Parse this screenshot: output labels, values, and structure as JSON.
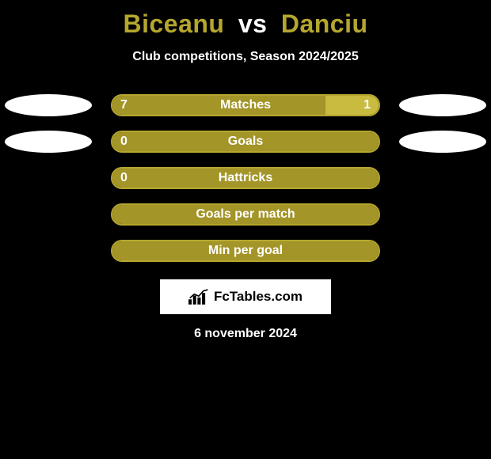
{
  "title": {
    "player1": "Biceanu",
    "vs": "vs",
    "player2": "Danciu",
    "player1_color": "#b5a62e",
    "player2_color": "#b5a62e",
    "vs_color": "#ffffff",
    "fontsize": 32
  },
  "subtitle": {
    "text": "Club competitions, Season 2024/2025",
    "color": "#ffffff",
    "fontsize": 16
  },
  "colors": {
    "background": "#000000",
    "bar_border": "#b5a62e",
    "fill_left": "#a39528",
    "fill_right": "#c9ba40",
    "badge": "#ffffff",
    "text": "#ffffff"
  },
  "bar": {
    "track_width": 340,
    "track_height": 28,
    "border_width": 2,
    "border_radius": 14
  },
  "badges": {
    "width": 110,
    "height": 28,
    "shape": "ellipse"
  },
  "rows": [
    {
      "label": "Matches",
      "left_value": "7",
      "right_value": "1",
      "left_pct": 80,
      "right_pct": 20,
      "show_left_badge": true,
      "show_right_badge": true,
      "show_left_value": true,
      "show_right_value": true
    },
    {
      "label": "Goals",
      "left_value": "0",
      "right_value": "",
      "left_pct": 100,
      "right_pct": 0,
      "show_left_badge": true,
      "show_right_badge": true,
      "show_left_value": true,
      "show_right_value": false
    },
    {
      "label": "Hattricks",
      "left_value": "0",
      "right_value": "",
      "left_pct": 100,
      "right_pct": 0,
      "show_left_badge": false,
      "show_right_badge": false,
      "show_left_value": true,
      "show_right_value": false
    },
    {
      "label": "Goals per match",
      "left_value": "",
      "right_value": "",
      "left_pct": 100,
      "right_pct": 0,
      "show_left_badge": false,
      "show_right_badge": false,
      "show_left_value": false,
      "show_right_value": false
    },
    {
      "label": "Min per goal",
      "left_value": "",
      "right_value": "",
      "left_pct": 100,
      "right_pct": 0,
      "show_left_badge": false,
      "show_right_badge": false,
      "show_left_value": false,
      "show_right_value": false
    }
  ],
  "brand": {
    "text": "FcTables.com",
    "box_bg": "#ffffff",
    "text_color": "#000000",
    "fontsize": 17
  },
  "date": {
    "text": "6 november 2024",
    "color": "#ffffff",
    "fontsize": 16
  }
}
